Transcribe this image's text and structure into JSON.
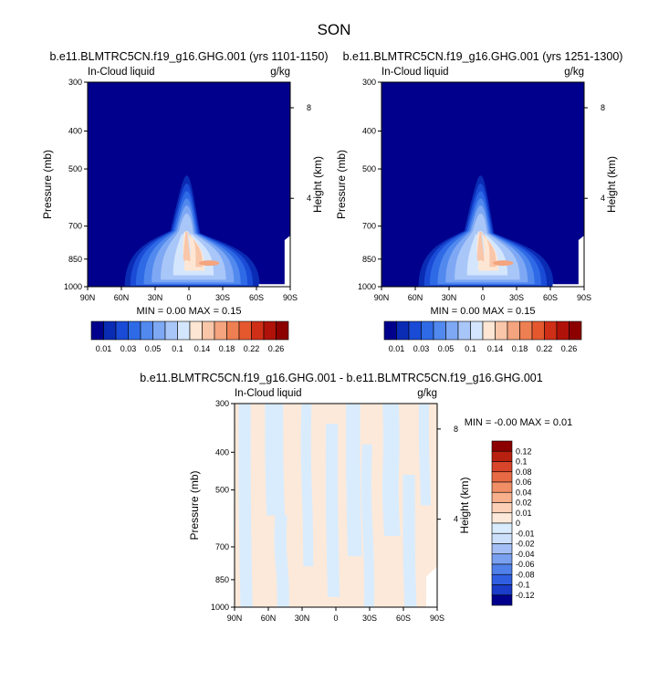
{
  "page_title": "SON",
  "colors": {
    "seq": [
      "#00008c",
      "#0a2bb4",
      "#1a4bd6",
      "#2f6ae6",
      "#5289ee",
      "#7ea8f4",
      "#a9c6f8",
      "#d4e6fd",
      "#fde6d4",
      "#f9c6a9",
      "#f4a47e",
      "#ee7f52",
      "#e5582e",
      "#cf2f17",
      "#b0120a",
      "#8c0000"
    ],
    "div": [
      "#00008c",
      "#1a3cc8",
      "#2f5fe0",
      "#5080ea",
      "#7aa0f0",
      "#a4bff5",
      "#cde0fb",
      "#d9ecfd",
      "#fde9d9",
      "#fbd0b6",
      "#f7af8c",
      "#f08e66",
      "#e86a44",
      "#d8452a",
      "#b8200f",
      "#8c0000"
    ]
  },
  "chart_data": [
    {
      "type": "heatmap",
      "title": "b.e11.BLMTRC5CN.f19_g16.GHG.001 (yrs 1101-1150)",
      "left_label": "In-Cloud liquid",
      "right_label": "g/kg",
      "ylabel": "Pressure (mb)",
      "ylabel_right": "Height (km)",
      "x_ticks": [
        "90N",
        "60N",
        "30N",
        "0",
        "30S",
        "60S",
        "90S"
      ],
      "y_ticks": [
        "300",
        "400",
        "500",
        "700",
        "850",
        "1000"
      ],
      "y_ticks_right": [
        "8",
        "4"
      ],
      "stats": "MIN =  0.00  MAX =  0.15",
      "colorbar_labels": [
        "0.01",
        "0.03",
        "0.05",
        "0.1",
        "0.14",
        "0.18",
        "0.22",
        "0.26"
      ],
      "value_range": [
        0.0,
        0.15
      ]
    },
    {
      "type": "heatmap",
      "title": "b.e11.BLMTRC5CN.f19_g16.GHG.001 (yrs 1251-1300)",
      "left_label": "In-Cloud liquid",
      "right_label": "g/kg",
      "ylabel": "Pressure (mb)",
      "ylabel_right": "Height (km)",
      "x_ticks": [
        "90N",
        "60N",
        "30N",
        "0",
        "30S",
        "60S",
        "90S"
      ],
      "y_ticks": [
        "300",
        "400",
        "500",
        "700",
        "850",
        "1000"
      ],
      "y_ticks_right": [
        "8",
        "4"
      ],
      "stats": "MIN =  0.00  MAX =  0.15",
      "colorbar_labels": [
        "0.01",
        "0.03",
        "0.05",
        "0.1",
        "0.14",
        "0.18",
        "0.22",
        "0.26"
      ],
      "value_range": [
        0.0,
        0.15
      ]
    },
    {
      "type": "heatmap",
      "title": "b.e11.BLMTRC5CN.f19_g16.GHG.001 - b.e11.BLMTRC5CN.f19_g16.GHG.001",
      "left_label": "In-Cloud liquid",
      "right_label": "g/kg",
      "ylabel": "Pressure (mb)",
      "ylabel_right": "Height (km)",
      "x_ticks": [
        "90N",
        "60N",
        "30N",
        "0",
        "30S",
        "60S",
        "90S"
      ],
      "y_ticks": [
        "300",
        "400",
        "500",
        "700",
        "850",
        "1000"
      ],
      "y_ticks_right": [
        "8",
        "4"
      ],
      "stats": "MIN = -0.00  MAX =  0.01",
      "colorbar_labels": [
        "0.12",
        "0.1",
        "0.08",
        "0.06",
        "0.04",
        "0.02",
        "0.01",
        "0",
        "-0.01",
        "-0.02",
        "-0.04",
        "-0.06",
        "-0.08",
        "-0.1",
        "-0.12"
      ],
      "value_range": [
        -0.0,
        0.01
      ]
    }
  ]
}
